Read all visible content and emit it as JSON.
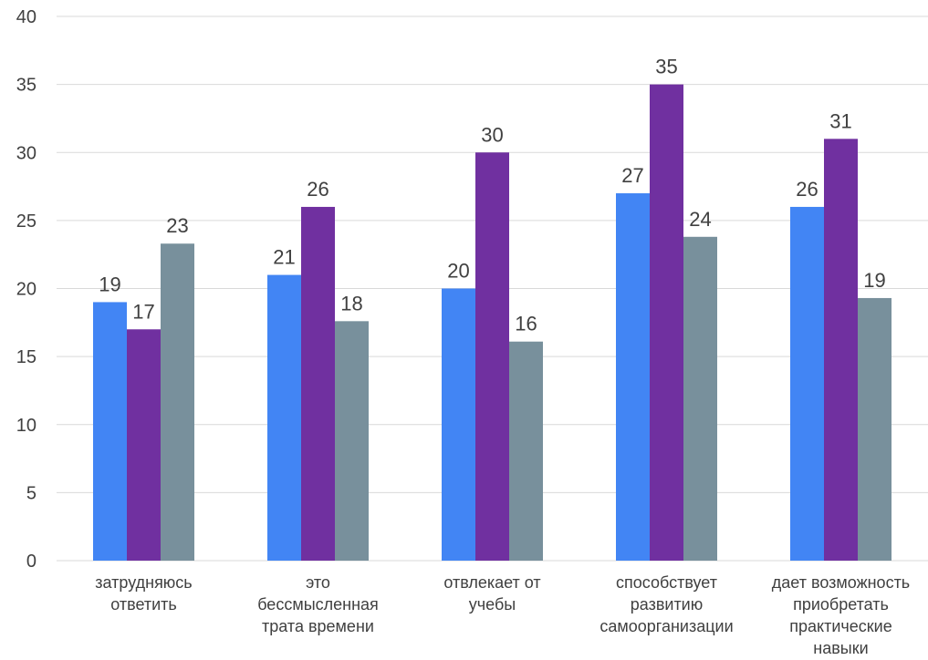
{
  "chart_data": {
    "type": "bar",
    "title": "",
    "xlabel": "",
    "ylabel": "",
    "ylim": [
      0,
      40
    ],
    "yticks": [
      0,
      5,
      10,
      15,
      20,
      25,
      30,
      35,
      40
    ],
    "grid": true,
    "legend": "none",
    "categories": [
      [
        "затрудняюсь",
        "ответить"
      ],
      [
        "это",
        "бессмысленная",
        "трата времени"
      ],
      [
        "отвлекает от",
        "учебы"
      ],
      [
        "способствует",
        "развитию",
        "самоорганизации"
      ],
      [
        "дает возможность",
        "приобретать",
        "практические",
        "навыки"
      ]
    ],
    "series": [
      {
        "color": "#4285f4",
        "values": [
          19,
          21,
          20,
          27,
          26
        ],
        "labels": [
          "19",
          "21",
          "20",
          "27",
          "26"
        ]
      },
      {
        "color": "#7030a0",
        "values": [
          17,
          26,
          30,
          35,
          31
        ],
        "labels": [
          "17",
          "26",
          "30",
          "35",
          "31"
        ]
      },
      {
        "color": "#78909c",
        "values": [
          23.3,
          17.6,
          16.1,
          23.8,
          19.3
        ],
        "labels": [
          "23",
          "18",
          "16",
          "24",
          "19"
        ]
      }
    ]
  }
}
